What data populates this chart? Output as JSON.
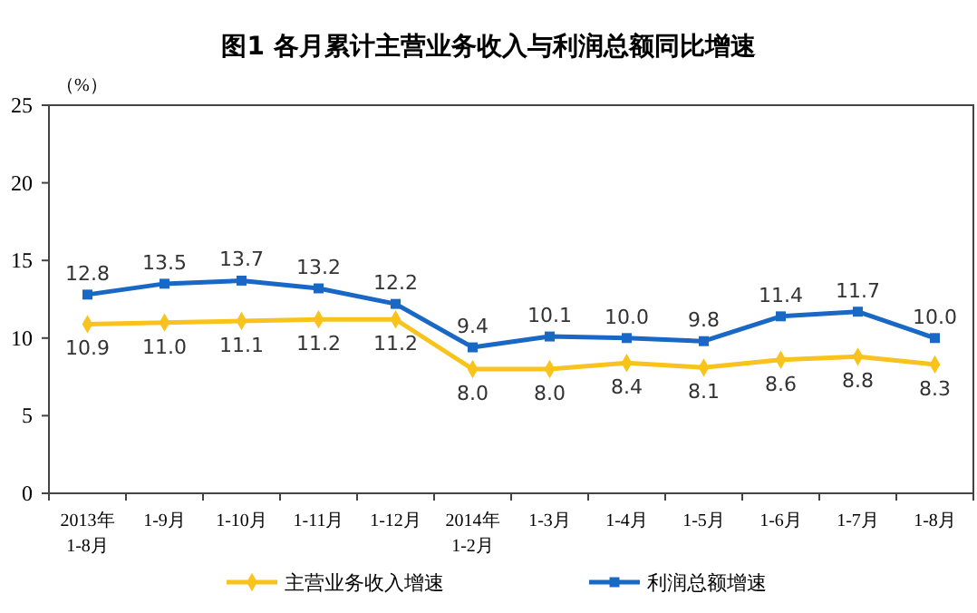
{
  "chart_data": {
    "type": "line",
    "title": "图1  各月累计主营业务收入与利润总额同比增速",
    "ylabel": "（%）",
    "categories": [
      "2013年\n1-8月",
      "1-9月",
      "1-10月",
      "1-11月",
      "1-12月",
      "2014年\n1-2月",
      "1-3月",
      "1-4月",
      "1-5月",
      "1-6月",
      "1-7月",
      "1-8月"
    ],
    "series": [
      {
        "name": "主营业务收入增速",
        "color": "#f7c31c",
        "marker": "diamond",
        "values": [
          10.9,
          11.0,
          11.1,
          11.2,
          11.2,
          8.0,
          8.0,
          8.4,
          8.1,
          8.6,
          8.8,
          8.3
        ],
        "value_labels": [
          "10.9",
          "11.0",
          "11.1",
          "11.2",
          "11.2",
          "8.0",
          "8.0",
          "8.4",
          "8.1",
          "8.6",
          "8.8",
          "8.3"
        ]
      },
      {
        "name": "利润总额增速",
        "color": "#1a68c6",
        "marker": "square",
        "values": [
          12.8,
          13.5,
          13.7,
          13.2,
          12.2,
          9.4,
          10.1,
          10.0,
          9.8,
          11.4,
          11.7,
          10.0
        ],
        "value_labels": [
          "12.8",
          "13.5",
          "13.7",
          "13.2",
          "12.2",
          "9.4",
          "10.1",
          "10.0",
          "9.8",
          "11.4",
          "11.7",
          "10.0"
        ]
      }
    ],
    "ylim": [
      0,
      25
    ],
    "yticks": [
      0,
      5,
      10,
      15,
      20,
      25
    ],
    "legend": "bottom"
  }
}
